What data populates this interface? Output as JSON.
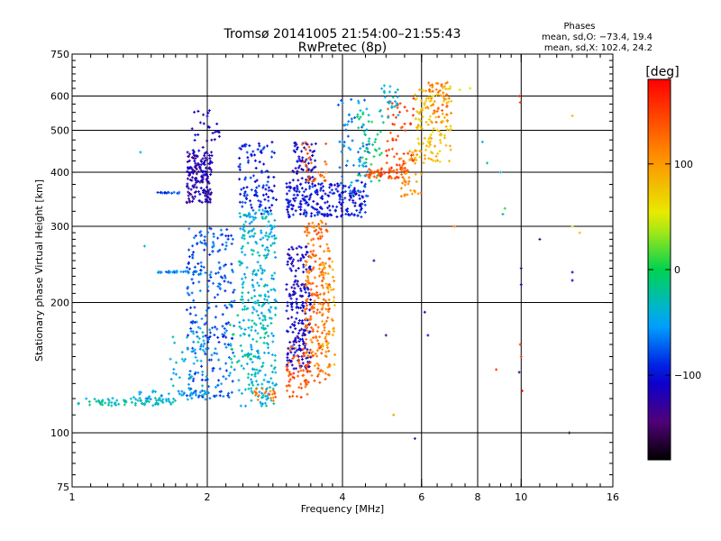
{
  "colors": {
    "background": "#ffffff",
    "axes": "#000000"
  },
  "chart_data": {
    "type": "scatter",
    "title": "Tromsø 20141005 21:54:00–21:55:43",
    "subtitle": "RwPretec (8p)",
    "xlabel": "Frequency [MHz]",
    "ylabel": "Stationary phase Virtual Height [km]",
    "xscale": "log",
    "yscale": "log",
    "xlim": [
      1,
      16
    ],
    "ylim": [
      75,
      750
    ],
    "x_ticks": [
      1,
      2,
      4,
      6,
      8,
      10,
      16
    ],
    "x_tick_labels": [
      "1",
      "2",
      "4",
      "6",
      "8",
      "10",
      "16"
    ],
    "y_ticks": [
      75,
      100,
      200,
      300,
      400,
      500,
      600,
      750
    ],
    "y_tick_labels": [
      "75",
      "100",
      "200",
      "300",
      "400",
      "500",
      "600",
      "750"
    ],
    "grid_x": [
      2,
      4,
      6,
      8,
      10
    ],
    "grid_y": [
      100,
      200,
      300,
      400,
      500,
      600
    ],
    "grid": true,
    "phase_box": {
      "title": "Phases",
      "line_o": "mean, sd,O: −73.4, 19.4",
      "line_x": "mean, sd,X: 102.4, 24.2",
      "placement": "top-right"
    },
    "colorbar": {
      "label": "[deg]",
      "range": [
        -180,
        180
      ],
      "ticks": [
        100,
        0,
        -100
      ],
      "tick_labels": [
        "100",
        "0",
        "−100"
      ],
      "colormap": "rainbow"
    },
    "clusters": [
      {
        "x0": 1.03,
        "x1": 1.7,
        "y0": 112,
        "y1": 124,
        "kind": "trace",
        "phase": -30,
        "n": 70
      },
      {
        "x0": 1.35,
        "x1": 2.0,
        "y0": 115,
        "y1": 130,
        "kind": "trace",
        "phase": -50,
        "n": 45
      },
      {
        "x0": 1.55,
        "x1": 1.9,
        "y0": 233,
        "y1": 238,
        "kind": "trace",
        "phase": -60,
        "n": 30
      },
      {
        "x0": 1.55,
        "x1": 1.75,
        "y0": 355,
        "y1": 362,
        "kind": "trace",
        "phase": -80,
        "n": 14
      },
      {
        "x0": 1.8,
        "x1": 2.05,
        "y0": 340,
        "y1": 450,
        "kind": "band",
        "phase": -120,
        "n": 170
      },
      {
        "x0": 1.85,
        "x1": 2.15,
        "y0": 450,
        "y1": 560,
        "kind": "band",
        "phase": -110,
        "n": 25
      },
      {
        "x0": 1.8,
        "x1": 2.3,
        "y0": 120,
        "y1": 300,
        "kind": "band",
        "phase": -75,
        "n": 260
      },
      {
        "x0": 1.65,
        "x1": 2.0,
        "y0": 125,
        "y1": 175,
        "kind": "band",
        "phase": -40,
        "n": 40
      },
      {
        "x0": 2.35,
        "x1": 2.85,
        "y0": 115,
        "y1": 330,
        "kind": "band",
        "phase": -40,
        "n": 330
      },
      {
        "x0": 2.35,
        "x1": 2.85,
        "y0": 320,
        "y1": 470,
        "kind": "band",
        "phase": -95,
        "n": 110
      },
      {
        "x0": 2.55,
        "x1": 2.85,
        "y0": 118,
        "y1": 128,
        "kind": "band",
        "phase": 120,
        "n": 20
      },
      {
        "x0": 2.2,
        "x1": 2.7,
        "y0": 135,
        "y1": 200,
        "kind": "band",
        "phase": -20,
        "n": 40
      },
      {
        "x0": 3.0,
        "x1": 3.4,
        "y0": 140,
        "y1": 270,
        "kind": "band",
        "phase": -110,
        "n": 210
      },
      {
        "x0": 3.0,
        "x1": 4.5,
        "y0": 315,
        "y1": 380,
        "kind": "band",
        "phase": -100,
        "n": 230
      },
      {
        "x0": 3.1,
        "x1": 3.5,
        "y0": 380,
        "y1": 470,
        "kind": "band",
        "phase": -115,
        "n": 60
      },
      {
        "x0": 3.0,
        "x1": 3.4,
        "y0": 120,
        "y1": 160,
        "kind": "band",
        "phase": 140,
        "n": 60
      },
      {
        "x0": 3.3,
        "x1": 3.75,
        "y0": 130,
        "y1": 310,
        "kind": "band",
        "phase": 125,
        "n": 230
      },
      {
        "x0": 3.6,
        "x1": 3.85,
        "y0": 140,
        "y1": 250,
        "kind": "band",
        "phase": 95,
        "n": 50
      },
      {
        "x0": 3.25,
        "x1": 3.7,
        "y0": 380,
        "y1": 470,
        "kind": "band",
        "phase": 130,
        "n": 30
      },
      {
        "x0": 3.9,
        "x1": 4.6,
        "y0": 350,
        "y1": 600,
        "kind": "band",
        "phase": -60,
        "n": 70
      },
      {
        "x0": 4.3,
        "x1": 4.9,
        "y0": 380,
        "y1": 560,
        "kind": "band",
        "phase": -10,
        "n": 40
      },
      {
        "x0": 4.5,
        "x1": 5.6,
        "y0": 370,
        "y1": 430,
        "kind": "trace",
        "phase": 140,
        "n": 55
      },
      {
        "x0": 5.0,
        "x1": 5.8,
        "y0": 400,
        "y1": 600,
        "kind": "band",
        "phase": 150,
        "n": 50
      },
      {
        "x0": 5.4,
        "x1": 6.0,
        "y0": 350,
        "y1": 450,
        "kind": "band",
        "phase": 110,
        "n": 45
      },
      {
        "x0": 5.8,
        "x1": 7.0,
        "y0": 420,
        "y1": 640,
        "kind": "band",
        "phase": 80,
        "n": 130
      },
      {
        "x0": 6.2,
        "x1": 7.0,
        "y0": 520,
        "y1": 650,
        "kind": "band",
        "phase": 120,
        "n": 40
      },
      {
        "x0": 4.8,
        "x1": 5.5,
        "y0": 520,
        "y1": 640,
        "kind": "band",
        "phase": -40,
        "n": 25
      }
    ],
    "outliers": [
      {
        "x": 1.42,
        "y": 445,
        "phase": -40
      },
      {
        "x": 1.45,
        "y": 270,
        "phase": -40
      },
      {
        "x": 5.8,
        "y": 97,
        "phase": -130
      },
      {
        "x": 5.2,
        "y": 110,
        "phase": 100
      },
      {
        "x": 6.1,
        "y": 190,
        "phase": -100
      },
      {
        "x": 6.2,
        "y": 168,
        "phase": -100
      },
      {
        "x": 5.0,
        "y": 168,
        "phase": -150
      },
      {
        "x": 4.7,
        "y": 250,
        "phase": -130
      },
      {
        "x": 8.2,
        "y": 470,
        "phase": -40
      },
      {
        "x": 8.4,
        "y": 420,
        "phase": -20
      },
      {
        "x": 9.0,
        "y": 400,
        "phase": -40
      },
      {
        "x": 9.1,
        "y": 320,
        "phase": -30
      },
      {
        "x": 9.2,
        "y": 330,
        "phase": 10
      },
      {
        "x": 8.8,
        "y": 140,
        "phase": 150
      },
      {
        "x": 9.9,
        "y": 600,
        "phase": 170
      },
      {
        "x": 9.95,
        "y": 580,
        "phase": 150
      },
      {
        "x": 10.0,
        "y": 240,
        "phase": -130
      },
      {
        "x": 10.0,
        "y": 220,
        "phase": -110
      },
      {
        "x": 9.95,
        "y": 160,
        "phase": 150
      },
      {
        "x": 10.0,
        "y": 150,
        "phase": 150
      },
      {
        "x": 9.9,
        "y": 138,
        "phase": -130
      },
      {
        "x": 10.05,
        "y": 125,
        "phase": 170
      },
      {
        "x": 11.0,
        "y": 280,
        "phase": -130
      },
      {
        "x": 13.0,
        "y": 235,
        "phase": -120
      },
      {
        "x": 13.0,
        "y": 225,
        "phase": -110
      },
      {
        "x": 13.0,
        "y": 300,
        "phase": 60
      },
      {
        "x": 13.5,
        "y": 290,
        "phase": 80
      },
      {
        "x": 12.8,
        "y": 100,
        "phase": -170
      },
      {
        "x": 13.0,
        "y": 540,
        "phase": 80
      },
      {
        "x": 7.1,
        "y": 300,
        "phase": 120
      },
      {
        "x": 7.3,
        "y": 620,
        "phase": 60
      },
      {
        "x": 7.7,
        "y": 625,
        "phase": 60
      },
      {
        "x": 6.8,
        "y": 590,
        "phase": 90
      }
    ]
  }
}
